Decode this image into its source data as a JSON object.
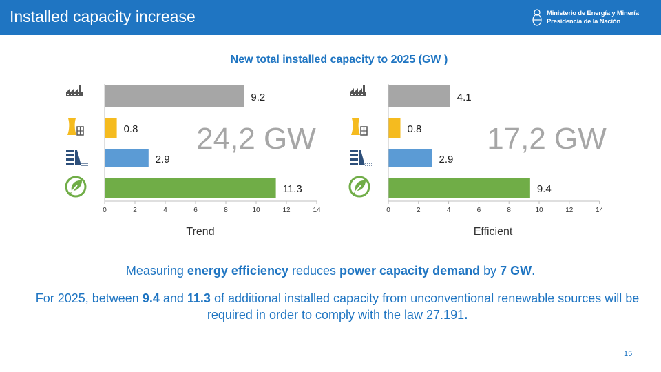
{
  "header": {
    "title": "Installed capacity increase",
    "logo_line1": "Ministerio de Energía y Minería",
    "logo_line2": "Presidencia de la Nación"
  },
  "subtitle": "New total installed capacity to 2025 (GW )",
  "colors": {
    "header": "#1f75c2",
    "gray": "#a6a6a6",
    "yellow": "#f5bb1f",
    "blue": "#5b9bd5",
    "green": "#70ad47"
  },
  "icons": [
    "factory-icon",
    "nuclear-plant-icon",
    "hydro-dam-icon",
    "renewable-leaf-icon"
  ],
  "chart_data": [
    {
      "type": "bar",
      "orientation": "horizontal",
      "name": "Trend",
      "total_label": "24,2 GW",
      "values": [
        9.2,
        0.8,
        2.9,
        11.3
      ],
      "value_labels": [
        "9.2",
        "0.8",
        "2.9",
        "11.3"
      ],
      "xlim": [
        0,
        14
      ],
      "ticks": [
        "0",
        "2",
        "4",
        "6",
        "8",
        "10",
        "12",
        "14"
      ]
    },
    {
      "type": "bar",
      "orientation": "horizontal",
      "name": "Efficient",
      "total_label": "17,2 GW",
      "values": [
        4.1,
        0.8,
        2.9,
        9.4
      ],
      "value_labels": [
        "4.1",
        "0.8",
        "2.9",
        "9.4"
      ],
      "xlim": [
        0,
        14
      ],
      "ticks": [
        "0",
        "2",
        "4",
        "6",
        "8",
        "10",
        "12",
        "14"
      ]
    }
  ],
  "text": {
    "l1a": "Measuring ",
    "l1b": "energy efficiency",
    "l1c": " reduces ",
    "l1d": "power capacity demand",
    "l1e": " by ",
    "l1f": "7 GW",
    "l1g": ".",
    "l2a": "For 2025, between ",
    "l2b": "9.4",
    "l2c": " and  ",
    "l2d": "11.3",
    "l2e": " of additional installed capacity from unconventional renewable sources will be required in order to comply with the law 27.191",
    "l2f": "."
  },
  "page_number": "15"
}
